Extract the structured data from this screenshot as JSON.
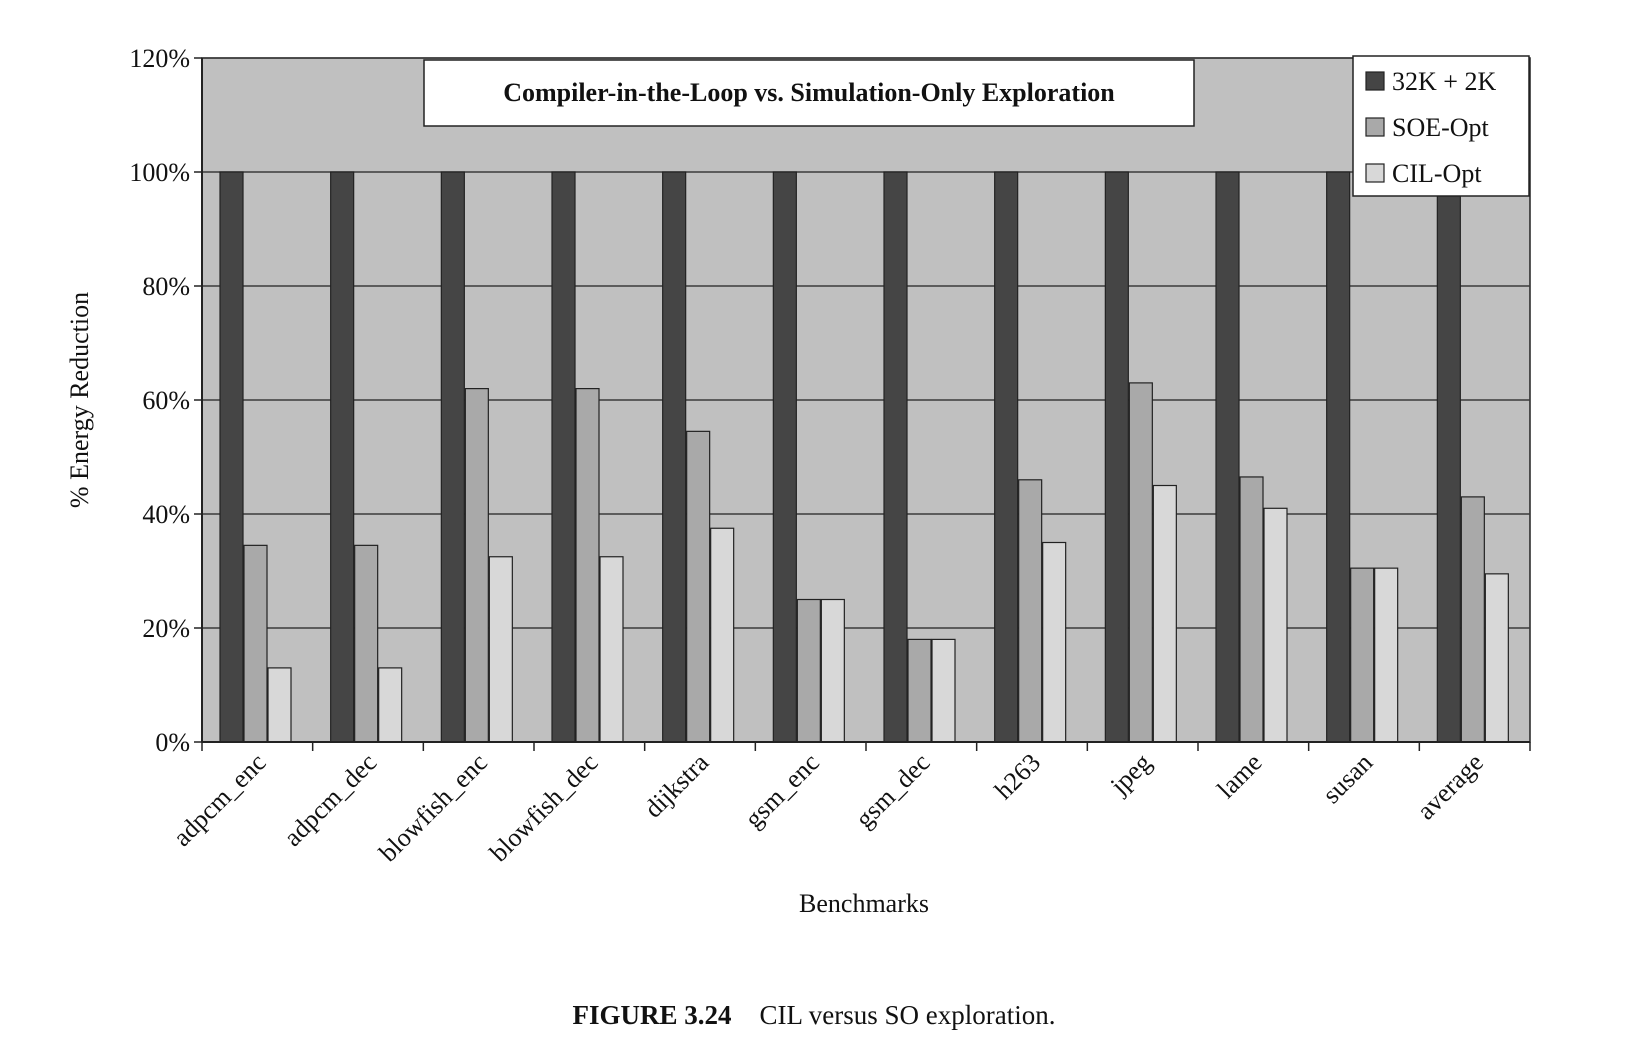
{
  "chart_data": {
    "type": "bar",
    "title": "Compiler-in-the-Loop vs. Simulation-Only Exploration",
    "xlabel": "Benchmarks",
    "ylabel": "% Energy Reduction",
    "ylim": [
      0,
      120
    ],
    "yticks": [
      "0%",
      "20%",
      "40%",
      "60%",
      "80%",
      "100%",
      "120%"
    ],
    "grid": true,
    "legend_position": "top-right",
    "categories": [
      "adpcm_enc",
      "adpcm_dec",
      "blowfish_enc",
      "blowfish_dec",
      "dijkstra",
      "gsm_enc",
      "gsm_dec",
      "h263",
      "jpeg",
      "lame",
      "susan",
      "average"
    ],
    "series": [
      {
        "name": "32K + 2K",
        "color": "#454545",
        "values": [
          100,
          100,
          100,
          100,
          100,
          100,
          100,
          100,
          100,
          100,
          100,
          100
        ]
      },
      {
        "name": "SOE-Opt",
        "color": "#a9a9a9",
        "values": [
          34.5,
          34.5,
          62,
          62,
          54.5,
          25,
          18,
          46,
          63,
          46.5,
          30.5,
          43
        ]
      },
      {
        "name": "CIL-Opt",
        "color": "#d8d8d8",
        "values": [
          13,
          13,
          32.5,
          32.5,
          37.5,
          25,
          18,
          35,
          45,
          41,
          30.5,
          29.5
        ]
      }
    ],
    "colors": {
      "plot_background": "#c0c0c0",
      "gridline": "#3a3a3a"
    }
  },
  "caption": {
    "figure_number": "FIGURE 3.24",
    "text": "CIL versus SO exploration."
  }
}
